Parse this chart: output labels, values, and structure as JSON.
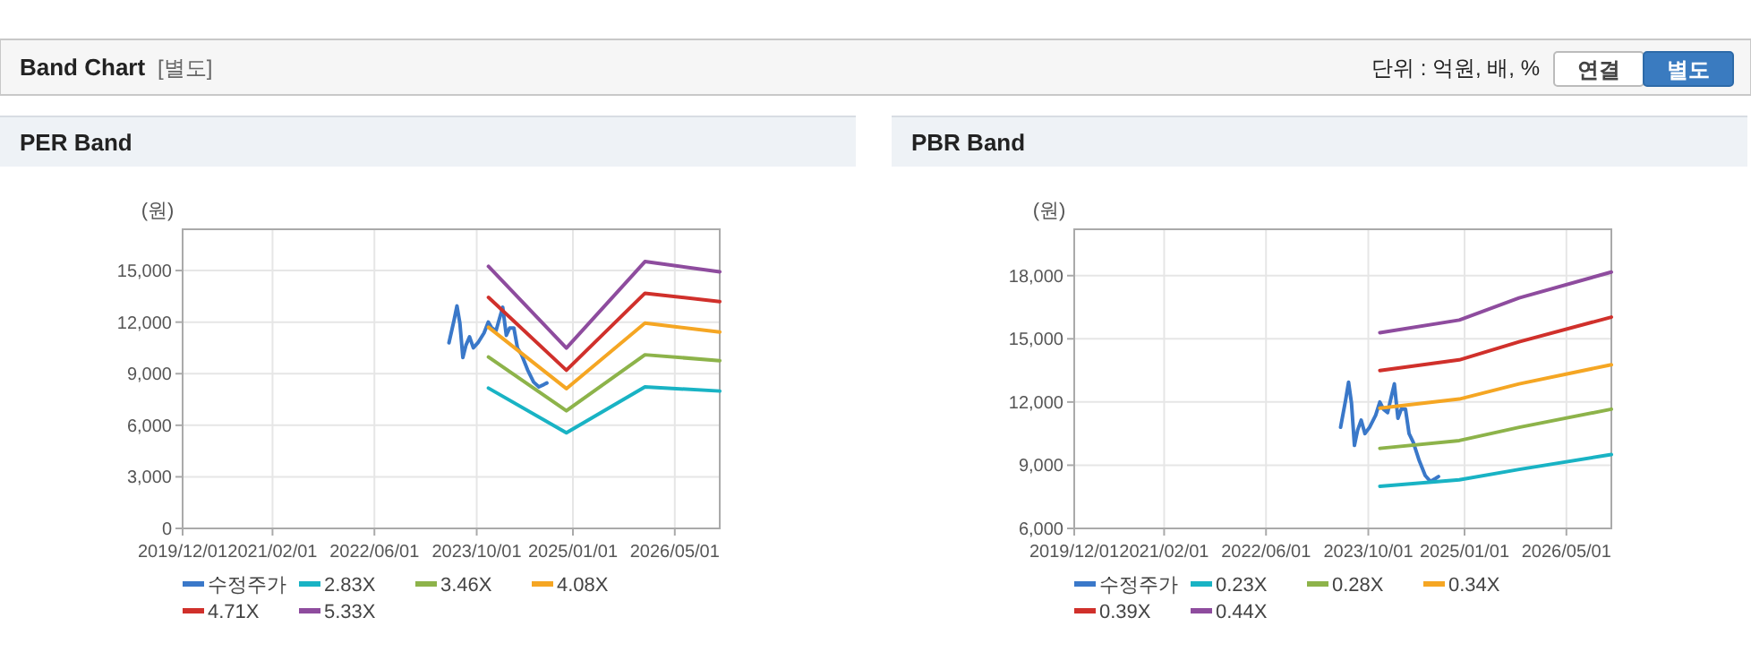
{
  "chart_data": [
    {
      "type": "other",
      "title": "Band Chart",
      "subtitle": "[별도]",
      "annotations": [
        "단위 : 억원, 배, %",
        "연결",
        "별도"
      ]
    },
    {
      "type": "line",
      "title": "PER Band",
      "ylabel": "(원)",
      "xlim": [
        "2019-12-01",
        "2026-12-01"
      ],
      "xticks": [
        {
          "value": "2019-12-01",
          "label": "2019/12/01"
        },
        {
          "value": "2021-02-01",
          "label": "2021/02/01"
        },
        {
          "value": "2022-06-01",
          "label": "2022/06/01"
        },
        {
          "value": "2023-10-01",
          "label": "2023/10/01"
        },
        {
          "value": "2025-01-01",
          "label": "2025/01/01"
        },
        {
          "value": "2026-05-01",
          "label": "2026/05/01"
        }
      ],
      "ylim": [
        0,
        17400
      ],
      "yticks": [
        {
          "value": 0,
          "label": "0"
        },
        {
          "value": 3000,
          "label": "3,000"
        },
        {
          "value": 6000,
          "label": "6,000"
        },
        {
          "value": 9000,
          "label": "9,000"
        },
        {
          "value": 12000,
          "label": "12,000"
        },
        {
          "value": 15000,
          "label": "15,000"
        }
      ],
      "grid": true,
      "legend": "bottom",
      "marker": "none",
      "line_style": "solid",
      "series": [
        {
          "name": "수정주가",
          "color": "#3a78c9",
          "x": [
            "2023-05-22",
            "2023-06-15",
            "2023-06-29",
            "2023-07-13",
            "2023-07-27",
            "2023-08-11",
            "2023-08-28",
            "2023-09-15",
            "2023-10-07",
            "2023-11-05",
            "2023-11-25",
            "2023-12-12",
            "2024-01-01",
            "2024-01-18",
            "2024-02-02",
            "2024-02-19",
            "2024-03-06",
            "2024-03-26",
            "2024-04-12",
            "2024-05-02",
            "2024-05-30",
            "2024-06-28",
            "2024-07-23",
            "2024-08-16",
            "2024-08-30"
          ],
          "values": [
            10800,
            12100,
            12940,
            11940,
            9940,
            10660,
            11140,
            10500,
            10800,
            11370,
            12000,
            11660,
            11500,
            12230,
            12860,
            11230,
            11660,
            11660,
            10500,
            10090,
            9230,
            8510,
            8230,
            8370,
            8460
          ]
        },
        {
          "name": "2.83X",
          "color": "#19b3c4",
          "x": [
            "2023-11-26",
            "2024-12-01",
            "2025-12-10",
            "2026-12-01"
          ],
          "values": [
            8160,
            5560,
            8230,
            7990
          ]
        },
        {
          "name": "3.46X",
          "color": "#8db34a",
          "x": [
            "2023-11-26",
            "2024-12-01",
            "2025-12-10",
            "2026-12-01"
          ],
          "values": [
            9970,
            6840,
            10100,
            9760
          ]
        },
        {
          "name": "4.08X",
          "color": "#f5a623",
          "x": [
            "2023-11-26",
            "2024-12-01",
            "2025-12-10",
            "2026-12-01"
          ],
          "values": [
            11700,
            8130,
            11940,
            11420
          ]
        },
        {
          "name": "4.71X",
          "color": "#d0302b",
          "x": [
            "2023-11-26",
            "2024-12-01",
            "2025-12-10",
            "2026-12-01"
          ],
          "values": [
            13440,
            9200,
            13680,
            13190
          ]
        },
        {
          "name": "5.33X",
          "color": "#8e4c9e",
          "x": [
            "2023-11-26",
            "2024-12-01",
            "2025-12-10",
            "2026-12-01"
          ],
          "values": [
            15240,
            10490,
            15520,
            14930
          ]
        }
      ]
    },
    {
      "type": "line",
      "title": "PBR Band",
      "ylabel": "(원)",
      "xlim": [
        "2019-12-01",
        "2026-12-01"
      ],
      "xticks": [
        {
          "value": "2019-12-01",
          "label": "2019/12/01"
        },
        {
          "value": "2021-02-01",
          "label": "2021/02/01"
        },
        {
          "value": "2022-06-01",
          "label": "2022/06/01"
        },
        {
          "value": "2023-10-01",
          "label": "2023/10/01"
        },
        {
          "value": "2025-01-01",
          "label": "2025/01/01"
        },
        {
          "value": "2026-05-01",
          "label": "2026/05/01"
        }
      ],
      "ylim": [
        6000,
        20200
      ],
      "yticks": [
        {
          "value": 6000,
          "label": "6,000"
        },
        {
          "value": 9000,
          "label": "9,000"
        },
        {
          "value": 12000,
          "label": "12,000"
        },
        {
          "value": 15000,
          "label": "15,000"
        },
        {
          "value": 18000,
          "label": "18,000"
        }
      ],
      "grid": true,
      "legend": "bottom",
      "marker": "none",
      "line_style": "solid",
      "series": [
        {
          "name": "수정주가",
          "color": "#3a78c9",
          "x": [
            "2023-05-22",
            "2023-06-15",
            "2023-06-29",
            "2023-07-13",
            "2023-07-27",
            "2023-08-11",
            "2023-08-28",
            "2023-09-15",
            "2023-10-07",
            "2023-11-05",
            "2023-11-25",
            "2023-12-12",
            "2024-01-01",
            "2024-01-18",
            "2024-02-02",
            "2024-02-19",
            "2024-03-06",
            "2024-03-26",
            "2024-04-12",
            "2024-05-02",
            "2024-05-30",
            "2024-06-28",
            "2024-07-23",
            "2024-08-16",
            "2024-08-30"
          ],
          "values": [
            10800,
            12100,
            12940,
            11940,
            9940,
            10660,
            11140,
            10500,
            10800,
            11370,
            12000,
            11660,
            11500,
            12230,
            12860,
            11230,
            11660,
            11660,
            10500,
            10090,
            9230,
            8510,
            8230,
            8370,
            8460
          ]
        },
        {
          "name": "0.23X",
          "color": "#19b3c4",
          "x": [
            "2023-11-25",
            "2024-12-07",
            "2025-09-18",
            "2026-12-01"
          ],
          "values": [
            8000,
            8310,
            8800,
            9510
          ]
        },
        {
          "name": "0.28X",
          "color": "#8db34a",
          "x": [
            "2023-11-25",
            "2024-12-07",
            "2025-09-18",
            "2026-12-01"
          ],
          "values": [
            9800,
            10170,
            10800,
            11660
          ]
        },
        {
          "name": "0.34X",
          "color": "#f5a623",
          "x": [
            "2023-11-25",
            "2024-12-07",
            "2025-09-18",
            "2026-12-01"
          ],
          "values": [
            11710,
            12140,
            12860,
            13770
          ]
        },
        {
          "name": "0.39X",
          "color": "#d0302b",
          "x": [
            "2023-11-25",
            "2024-12-07",
            "2025-09-18",
            "2026-12-01"
          ],
          "values": [
            13490,
            14000,
            14860,
            16030
          ]
        },
        {
          "name": "0.44X",
          "color": "#8e4c9e",
          "x": [
            "2023-11-25",
            "2024-12-07",
            "2025-09-18",
            "2026-12-01"
          ],
          "values": [
            15290,
            15890,
            16940,
            18170
          ]
        }
      ]
    }
  ]
}
